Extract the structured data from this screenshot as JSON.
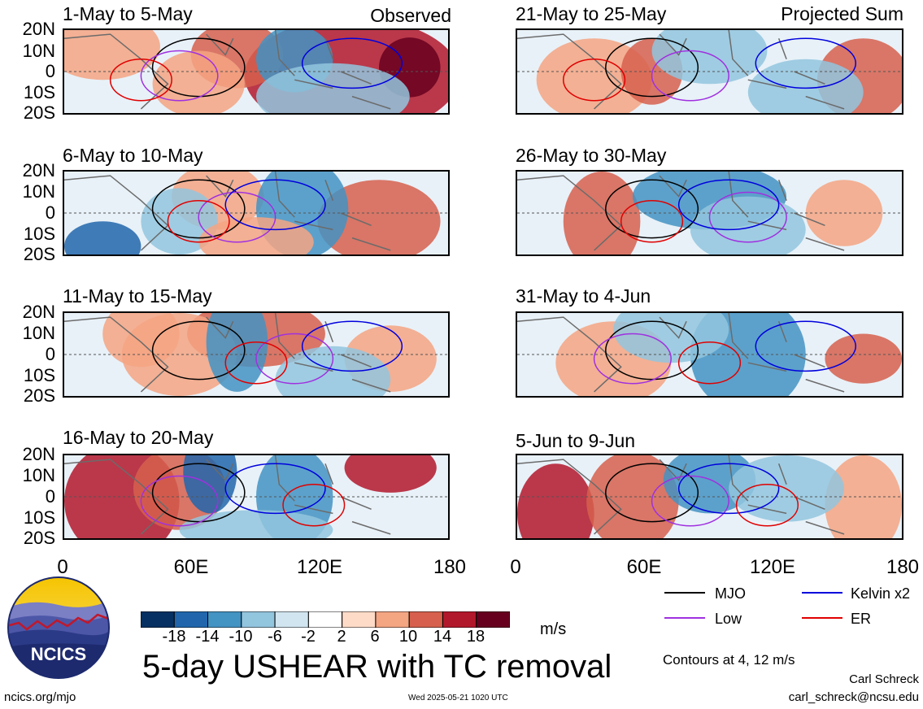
{
  "panels": [
    {
      "title": "1-May to 5-May",
      "label": "Observed"
    },
    {
      "title": "6-May to 10-May",
      "label": ""
    },
    {
      "title": "11-May to 15-May",
      "label": ""
    },
    {
      "title": "16-May to 20-May",
      "label": ""
    },
    {
      "title": "21-May to 25-May",
      "label": "Projected Sum"
    },
    {
      "title": "26-May to 30-May",
      "label": ""
    },
    {
      "title": "31-May to 4-Jun",
      "label": ""
    },
    {
      "title": "5-Jun to 9-Jun",
      "label": ""
    }
  ],
  "lat_labels": [
    "20N",
    "10N",
    "0",
    "10S",
    "20S"
  ],
  "lon_labels": [
    "0",
    "60E",
    "120E",
    "180"
  ],
  "legend": {
    "items": [
      {
        "name": "MJO",
        "color": "#000000"
      },
      {
        "name": "Kelvin x2",
        "color": "#0000dd"
      },
      {
        "name": "Low",
        "color": "#a030e0"
      },
      {
        "name": "ER",
        "color": "#e00000"
      }
    ],
    "note": "Contours at 4, 12 m/s"
  },
  "colorbar": {
    "ticks": [
      "-18",
      "-14",
      "-10",
      "-6",
      "-2",
      "2",
      "6",
      "10",
      "14",
      "18"
    ],
    "colors": [
      "#053061",
      "#2166ac",
      "#4393c3",
      "#92c5de",
      "#d1e5f0",
      "#ffffff",
      "#fddbc7",
      "#f4a582",
      "#d6604d",
      "#b2182b",
      "#67001f"
    ],
    "unit": "m/s"
  },
  "title": "5-day USHEAR with TC removal",
  "logo_text": "NCICS",
  "footer": {
    "left": "ncics.org/mjo",
    "center": "Wed 2025-05-21 1020 UTC",
    "author": "Carl Schreck",
    "email": "carl_schreck@ncsu.edu"
  }
}
